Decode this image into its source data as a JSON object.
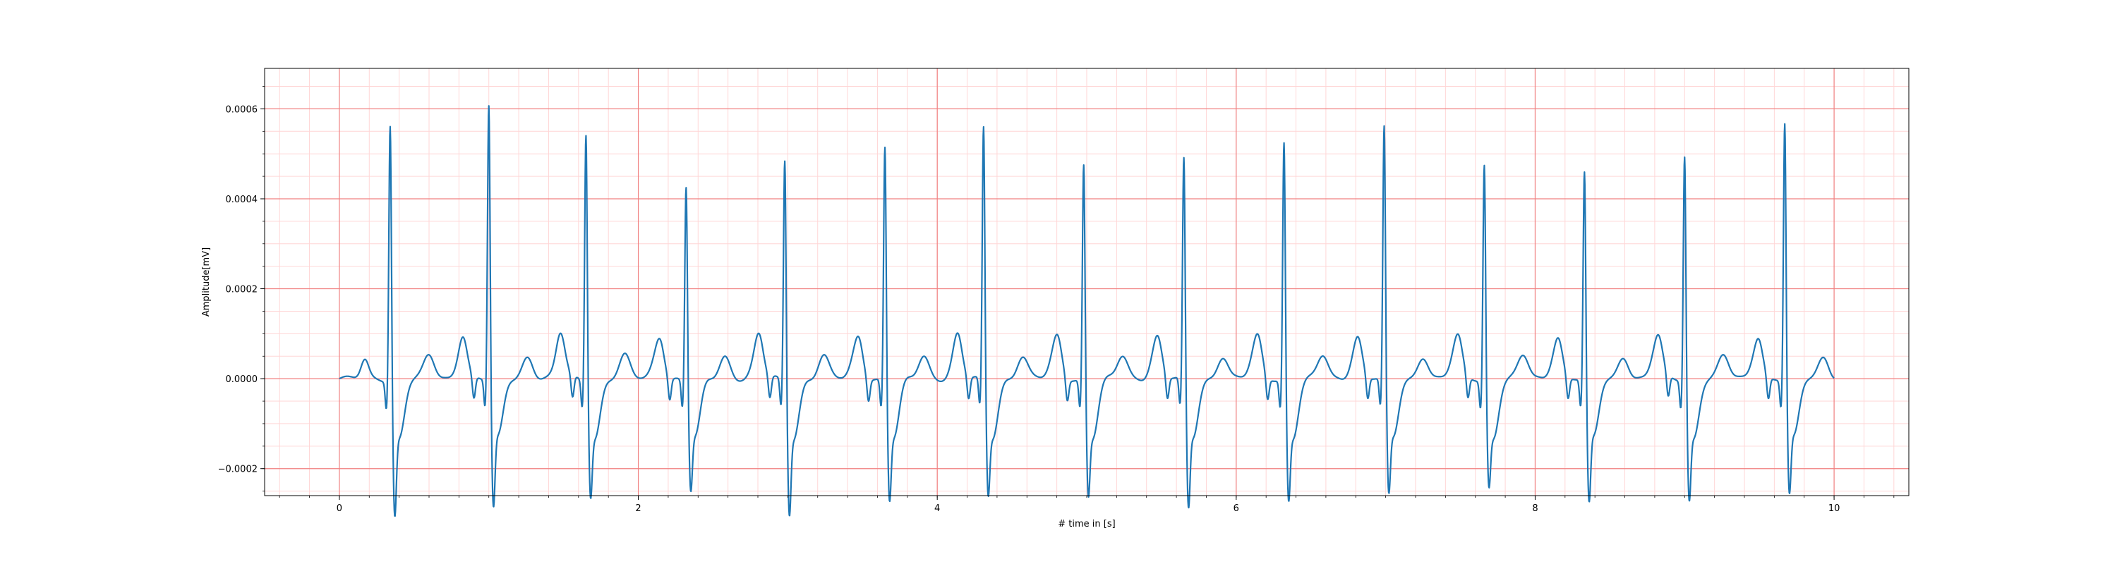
{
  "chart_data": {
    "type": "line",
    "title": "",
    "xlabel": "# time in [s]",
    "ylabel": "Amplitude[mV]",
    "xlim": [
      -0.5,
      10.5
    ],
    "ylim": [
      -0.00026,
      0.00069
    ],
    "x_ticks": [
      0,
      2,
      4,
      6,
      8,
      10
    ],
    "x_tick_labels": [
      "0",
      "2",
      "4",
      "6",
      "8",
      "10"
    ],
    "y_ticks": [
      -0.0002,
      0.0,
      0.0002,
      0.0004,
      0.0006
    ],
    "y_tick_labels": [
      "−0.0002",
      "0.0000",
      "0.0002",
      "0.0004",
      "0.0006"
    ],
    "grid": "on",
    "colors": {
      "line": "#1f77b4",
      "major_grid": "#f08080",
      "minor_grid": "#ffd6d6"
    },
    "series": [
      {
        "r_peaks": [
          {
            "t": 0.34,
            "a": 0.0006,
            "s": -0.000215
          },
          {
            "t": 1.0,
            "a": 0.00064,
            "s": -0.0002
          },
          {
            "t": 1.65,
            "a": 0.00058,
            "s": -0.00017
          },
          {
            "t": 2.32,
            "a": 0.00046,
            "s": -0.00016
          },
          {
            "t": 2.98,
            "a": 0.00052,
            "s": -0.00021
          },
          {
            "t": 3.65,
            "a": 0.00055,
            "s": -0.00018
          },
          {
            "t": 4.31,
            "a": 0.00059,
            "s": -0.00017
          },
          {
            "t": 4.98,
            "a": 0.00051,
            "s": -0.00017
          },
          {
            "t": 5.65,
            "a": 0.00052,
            "s": -0.0002
          },
          {
            "t": 6.32,
            "a": 0.00056,
            "s": -0.00018
          },
          {
            "t": 6.99,
            "a": 0.00059,
            "s": -0.00017
          },
          {
            "t": 7.66,
            "a": 0.00051,
            "s": -0.00015
          },
          {
            "t": 8.33,
            "a": 0.00049,
            "s": -0.00019
          },
          {
            "t": 9.0,
            "a": 0.00053,
            "s": -0.00018
          },
          {
            "t": 9.67,
            "a": 0.0006,
            "s": -0.00017
          }
        ],
        "t_start": 0.0,
        "t_end": 10.0
      }
    ]
  }
}
